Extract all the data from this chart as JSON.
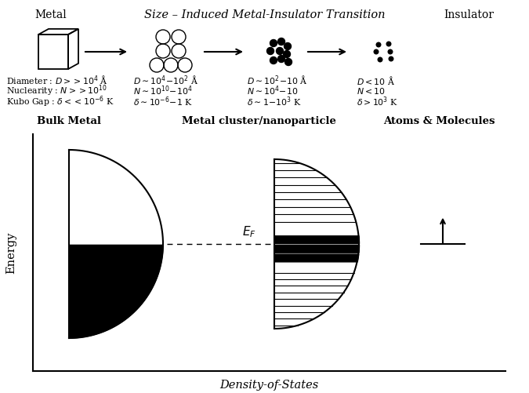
{
  "title": "Size – Induced Metal-Insulator Transition",
  "top_left_label": "Metal",
  "top_right_label": "Insulator",
  "col1_label": "Bulk Metal",
  "col2_label": "Metal cluster/nanoparticle",
  "col3_label": "Atoms & Molecules",
  "xlabel": "Density-of-States",
  "ylabel": "Energy",
  "EF_label": "$E_F$",
  "text_col1": [
    "Diameter : $D>>10^4$ Å",
    "Nuclearity : $N>>10^{10}$",
    "Kubo Gap : $\\delta<<10^{-6}$ K"
  ],
  "text_col2": [
    "$D\\sim10^4\\!-\\!10^2$ Å",
    "$N\\sim10^{10}\\!-\\!10^4$",
    "$\\delta\\sim10^{-6}\\!-\\!1$ K"
  ],
  "text_col3": [
    "$D\\sim10^2\\!-\\!10$ Å",
    "$N\\sim10^4\\!-\\!10$",
    "$\\delta\\sim1\\!-\\!10^3$ K"
  ],
  "text_col4": [
    "$D<10$ Å",
    "$N<10$",
    "$\\delta>10^3$ K"
  ],
  "bg_color": "#ffffff",
  "text_color": "#000000"
}
